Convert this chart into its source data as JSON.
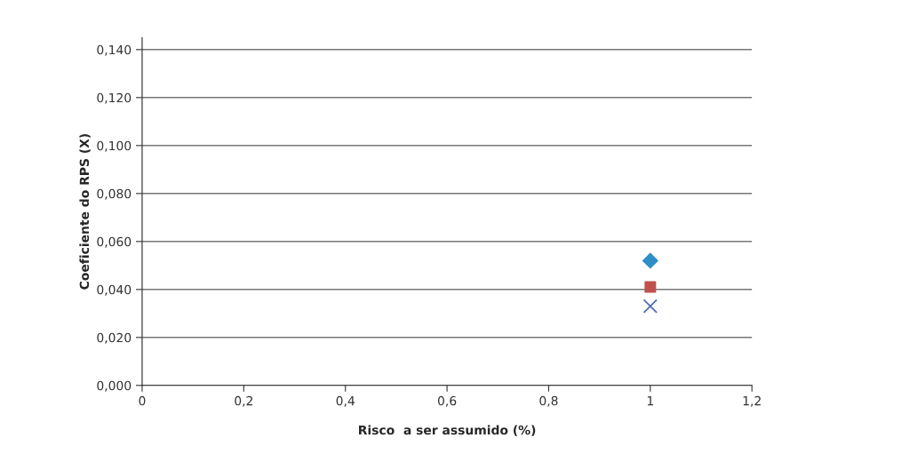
{
  "chart_data": {
    "type": "scatter",
    "xlabel": "Risco  a ser assumido (%)",
    "ylabel": "Coeficiente do RPS (X)",
    "x": [
      1
    ],
    "series": [
      {
        "color": "#2e8fc8",
        "marker": "diamond",
        "values": [
          0.052
        ]
      },
      {
        "color": "#c0504d",
        "marker": "square",
        "values": [
          0.041
        ]
      },
      {
        "color": "#4f6fb0",
        "marker": "cross",
        "values": [
          0.033
        ]
      }
    ],
    "xlim": [
      0,
      1.2
    ],
    "ylim": [
      0,
      0.145
    ],
    "xticks": [
      0,
      {
        "value": 0.2,
        "label": "0,2"
      },
      {
        "value": 0.4,
        "label": "0,4"
      },
      {
        "value": 0.6,
        "label": "0,6"
      },
      {
        "value": 0.8,
        "label": "0,8"
      },
      1,
      {
        "value": 1.2,
        "label": "1,2"
      }
    ],
    "yticks": [
      {
        "value": 0,
        "label": "0,000"
      },
      {
        "value": 0.02,
        "label": "0,020"
      },
      {
        "value": 0.04,
        "label": "0,040"
      },
      {
        "value": 0.06,
        "label": "0,060"
      },
      {
        "value": 0.08,
        "label": "0,080"
      },
      {
        "value": 0.1,
        "label": "0,100"
      },
      {
        "value": 0.12,
        "label": "0,120"
      },
      {
        "value": 0.14,
        "label": "0,140"
      }
    ],
    "grid": "y"
  }
}
